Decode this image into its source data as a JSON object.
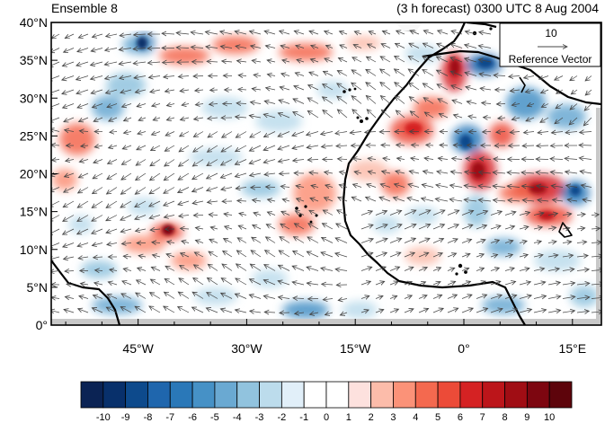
{
  "header": {
    "left_title": "Ensemble 8",
    "right_title": "(3 h forecast) 0300 UTC 8 Aug 2004"
  },
  "map": {
    "lon_range": [
      -57,
      19
    ],
    "lat_range": [
      0,
      40
    ],
    "lat_ticks": [
      {
        "value": 0,
        "label": "0°"
      },
      {
        "value": 5,
        "label": "5°N"
      },
      {
        "value": 10,
        "label": "10°N"
      },
      {
        "value": 15,
        "label": "15°N"
      },
      {
        "value": 20,
        "label": "20°N"
      },
      {
        "value": 25,
        "label": "25°N"
      },
      {
        "value": 30,
        "label": "30°N"
      },
      {
        "value": 35,
        "label": "35°N"
      },
      {
        "value": 40,
        "label": "40°N"
      }
    ],
    "lon_ticks": [
      {
        "value": -45,
        "label": "45°W"
      },
      {
        "value": -30,
        "label": "30°W"
      },
      {
        "value": -15,
        "label": "15°W"
      },
      {
        "value": 0,
        "label": "0°"
      },
      {
        "value": 15,
        "label": "15°E"
      }
    ]
  },
  "reference_vector": {
    "magnitude_label": "10",
    "caption": "Reference Vector"
  },
  "colorbar": {
    "levels": [
      "-10",
      "-9",
      "-8",
      "-7",
      "-6",
      "-5",
      "-4",
      "-3",
      "-2",
      "-1",
      "0",
      "1",
      "2",
      "3",
      "4",
      "5",
      "6",
      "7",
      "8",
      "9",
      "10"
    ],
    "colors": [
      "#0b2354",
      "#08306b",
      "#0d4a8c",
      "#1f66ad",
      "#2a78b8",
      "#4691c6",
      "#6aa9d2",
      "#91c3de",
      "#bcdcec",
      "#e1eff9",
      "#ffffff",
      "#ffffff",
      "#fde1de",
      "#fcbcaa",
      "#fb9278",
      "#f4694f",
      "#ec4b38",
      "#d52223",
      "#bc151a",
      "#a00d14",
      "#7d0610",
      "#5d040b"
    ]
  }
}
